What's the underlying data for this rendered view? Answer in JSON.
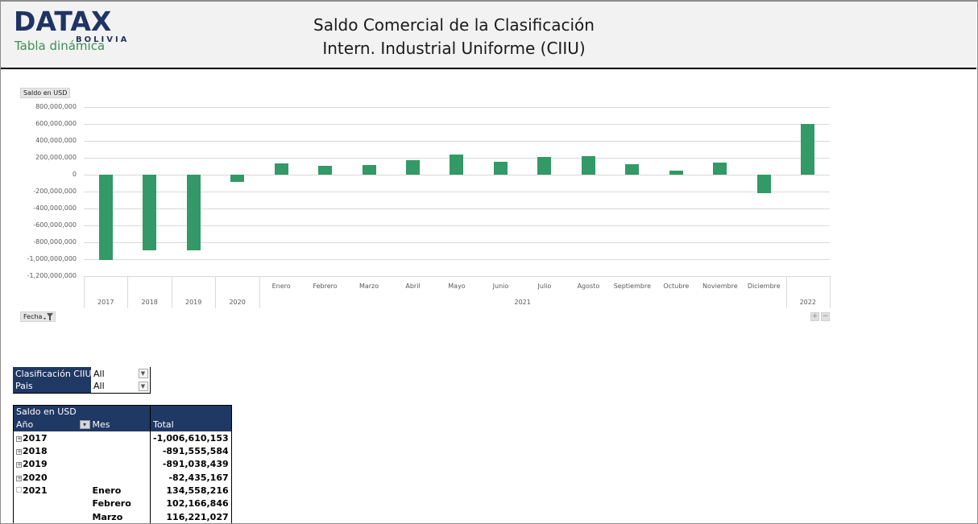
{
  "header": {
    "logo": {
      "word": "DATAX",
      "sub": "BOLIVIA",
      "tagline": "Tabla dinámica"
    },
    "title_line1": "Saldo Comercial de la Clasificación",
    "title_line2": "Intern. Industrial Uniforme (CIIU)",
    "colors": {
      "logo_navy": "#1f3464",
      "tagline_green": "#3b8f55",
      "header_bg": "#f2f2f2"
    }
  },
  "chart": {
    "value_field_button": "Saldo en USD",
    "axis_field_button": "Fecha",
    "filter_icon": "filter-icon",
    "zoom_in_label": "+",
    "zoom_out_label": "−",
    "bar_color": "#339966",
    "y_ticks": [
      "800,000,000",
      "600,000,000",
      "400,000,000",
      "200,000,000",
      "0",
      "-200,000,000",
      "-400,000,000",
      "-600,000,000",
      "-800,000,000",
      "-1,000,000,000",
      "-1,200,000,000"
    ],
    "month_labels": [
      "Enero",
      "Febrero",
      "Marzo",
      "Abril",
      "Mayo",
      "Junio",
      "Julio",
      "Agosto",
      "Septiembre",
      "Octubre",
      "Noviembre",
      "Diciembre"
    ],
    "year_labels": [
      "2017",
      "2018",
      "2019",
      "2020",
      "2021",
      "2022"
    ]
  },
  "chart_data": {
    "type": "bar",
    "title": "",
    "xlabel": "Fecha",
    "ylabel": "Saldo en USD",
    "ylim": [
      -1200000000,
      800000000
    ],
    "grid": true,
    "legend": "none",
    "categories": [
      "2017",
      "2018",
      "2019",
      "2020",
      "2021 Enero",
      "2021 Febrero",
      "2021 Marzo",
      "2021 Abril",
      "2021 Mayo",
      "2021 Junio",
      "2021 Julio",
      "2021 Agosto",
      "2021 Septiembre",
      "2021 Octubre",
      "2021 Noviembre",
      "2021 Diciembre",
      "2022"
    ],
    "series": [
      {
        "name": "Saldo en USD",
        "values": [
          -1006610153,
          -891555584,
          -891038439,
          -82435167,
          134558216,
          102166846,
          116221027,
          168000000,
          240000000,
          152000000,
          209000000,
          218000000,
          124000000,
          50000000,
          145000000,
          -219000000,
          600000000
        ]
      }
    ]
  },
  "filters": [
    {
      "label": "Clasificación CIIU",
      "value": "All"
    },
    {
      "label": "Pais",
      "value": "All"
    }
  ],
  "pivot": {
    "value_header": "Saldo en USD",
    "col_year": "Año",
    "col_month": "Mes",
    "col_total": "Total",
    "rows": [
      {
        "year": "2017",
        "month": "",
        "total": "-1,006,610,153",
        "expand": "+"
      },
      {
        "year": "2018",
        "month": "",
        "total": "-891,555,584",
        "expand": "+"
      },
      {
        "year": "2019",
        "month": "",
        "total": "-891,038,439",
        "expand": "+"
      },
      {
        "year": "2020",
        "month": "",
        "total": "-82,435,167",
        "expand": "+"
      },
      {
        "year": "2021",
        "month": "Enero",
        "total": "134,558,216",
        "expand": "-"
      },
      {
        "year": "",
        "month": "Febrero",
        "total": "102,166,846",
        "expand": ""
      },
      {
        "year": "",
        "month": "Marzo",
        "total": "116,221,027",
        "expand": ""
      }
    ],
    "header_color": "#203864"
  }
}
